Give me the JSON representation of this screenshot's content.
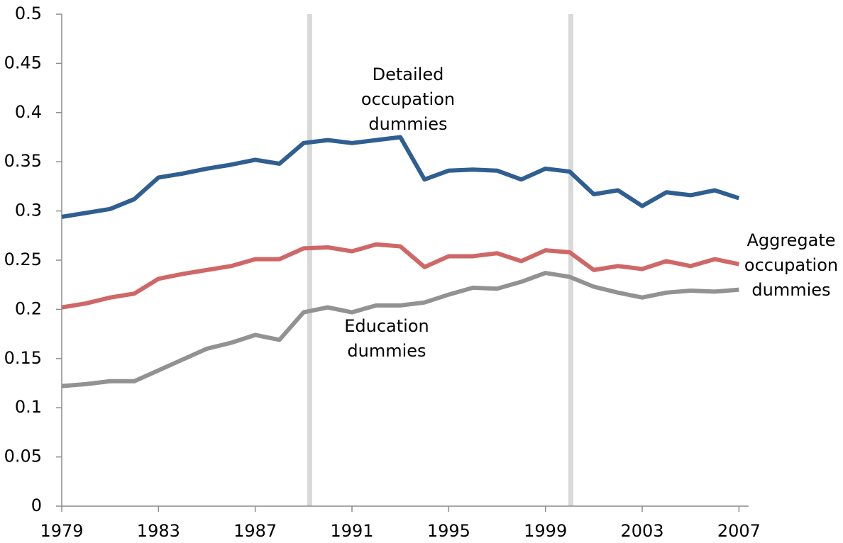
{
  "chart_data": {
    "type": "line",
    "x": [
      1979,
      1980,
      1981,
      1982,
      1983,
      1984,
      1985,
      1986,
      1987,
      1988,
      1989,
      1990,
      1991,
      1992,
      1993,
      1994,
      1995,
      1996,
      1997,
      1998,
      1999,
      2000,
      2001,
      2002,
      2003,
      2004,
      2005,
      2006,
      2007
    ],
    "series": [
      {
        "name": "Detailed occupation dummies",
        "color": "#2f5e91",
        "values": [
          0.294,
          0.298,
          0.302,
          0.312,
          0.334,
          0.338,
          0.343,
          0.347,
          0.352,
          0.348,
          0.369,
          0.372,
          0.369,
          0.372,
          0.375,
          0.332,
          0.341,
          0.342,
          0.341,
          0.332,
          0.343,
          0.34,
          0.317,
          0.321,
          0.305,
          0.319,
          0.316,
          0.321,
          0.313
        ]
      },
      {
        "name": "Aggregate occupation dummies",
        "color": "#cf6767",
        "values": [
          0.202,
          0.206,
          0.212,
          0.216,
          0.231,
          0.236,
          0.24,
          0.244,
          0.251,
          0.251,
          0.262,
          0.263,
          0.259,
          0.266,
          0.264,
          0.243,
          0.254,
          0.254,
          0.257,
          0.249,
          0.26,
          0.258,
          0.24,
          0.244,
          0.241,
          0.249,
          0.244,
          0.251,
          0.246
        ]
      },
      {
        "name": "Education dummies",
        "color": "#929292",
        "values": [
          0.122,
          0.124,
          0.127,
          0.127,
          0.138,
          0.149,
          0.16,
          0.166,
          0.174,
          0.169,
          0.197,
          0.202,
          0.197,
          0.204,
          0.204,
          0.207,
          0.215,
          0.222,
          0.221,
          0.228,
          0.237,
          0.233,
          0.223,
          0.217,
          0.212,
          0.217,
          0.219,
          0.218,
          0.22
        ]
      }
    ],
    "vlines": [
      1989.25,
      2000.05
    ],
    "xlim": [
      1979,
      2007.4
    ],
    "xticks": [
      1979,
      1983,
      1987,
      1991,
      1995,
      1999,
      2003,
      2007
    ],
    "ylim": [
      0,
      0.5
    ],
    "yticks": [
      0,
      0.05,
      0.1,
      0.15,
      0.2,
      0.25,
      0.3,
      0.35,
      0.4,
      0.45,
      0.5
    ]
  }
}
